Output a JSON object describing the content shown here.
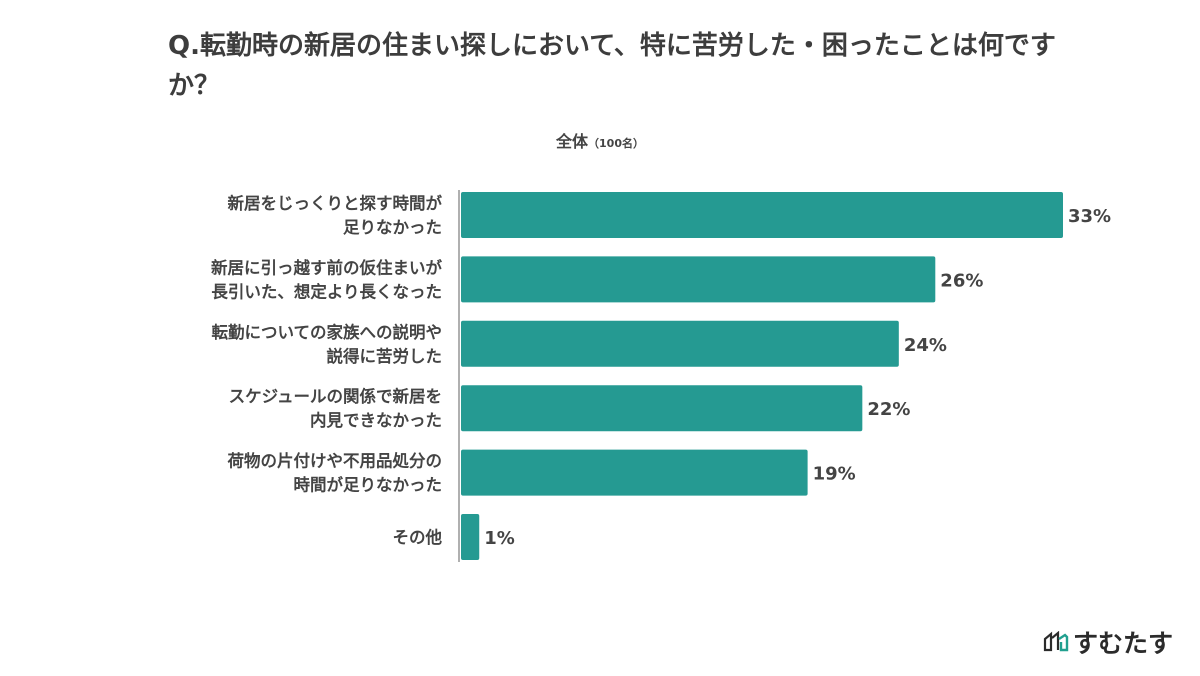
{
  "title": "Q.転勤時の新居の住まい探しにおいて、特に苦労した・困ったことは何ですか？",
  "subtitle": {
    "main": "全体",
    "note": "（100名）"
  },
  "logo": {
    "text": "すむたす"
  },
  "colors": {
    "bar": "#259a92",
    "axis": "#b0b0b0",
    "text": "#444444"
  },
  "chart_data": {
    "type": "bar",
    "orientation": "horizontal",
    "categories": [
      [
        "新居をじっくりと探す時間が",
        "足りなかった"
      ],
      [
        "新居に引っ越す前の仮住まいが",
        "長引いた、想定より長くなった"
      ],
      [
        "転勤についての家族への説明や",
        "説得に苦労した"
      ],
      [
        "スケジュールの関係で新居を",
        "内見できなかった"
      ],
      [
        "荷物の片付けや不用品処分の",
        "時間が足りなかった"
      ],
      [
        "その他"
      ]
    ],
    "values": [
      33,
      26,
      24,
      22,
      19,
      1
    ],
    "data_labels": [
      "33%",
      "26%",
      "24%",
      "22%",
      "19%",
      "1%"
    ],
    "unit": "%",
    "xlim": [
      0,
      33
    ],
    "grid": false
  }
}
